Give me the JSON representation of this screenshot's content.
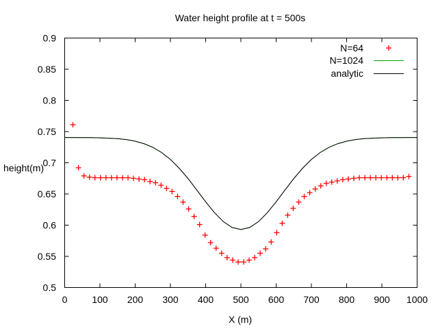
{
  "chart_data": {
    "type": "line",
    "title": "Water height profile at t = 500s",
    "xlabel": "X (m)",
    "ylabel": "height(m)",
    "xlim": [
      0,
      1000
    ],
    "ylim": [
      0.5,
      0.9
    ],
    "xticks": [
      "0",
      "100",
      "200",
      "300",
      "400",
      "500",
      "600",
      "700",
      "800",
      "900",
      "1000"
    ],
    "yticks": [
      "0.5",
      "0.55",
      "0.6",
      "0.65",
      "0.7",
      "0.75",
      "0.8",
      "0.85",
      "0.9"
    ],
    "grid": false,
    "legend_position": "top-right",
    "series": [
      {
        "name": "N=64",
        "style": "points",
        "marker": "plus",
        "color": "#ff0000",
        "x": [
          23.4,
          39.1,
          54.7,
          70.3,
          85.9,
          101.6,
          117.2,
          132.8,
          148.4,
          164.1,
          179.7,
          195.3,
          210.9,
          226.6,
          242.2,
          257.8,
          273.4,
          289.1,
          304.7,
          320.3,
          335.9,
          351.6,
          367.2,
          382.8,
          398.4,
          414.1,
          429.7,
          445.3,
          460.9,
          476.6,
          492.2,
          507.8,
          523.4,
          539.1,
          554.7,
          570.3,
          585.9,
          601.6,
          617.2,
          632.8,
          648.4,
          664.1,
          679.7,
          695.3,
          710.9,
          726.6,
          742.2,
          757.8,
          773.4,
          789.1,
          804.7,
          820.3,
          835.9,
          851.6,
          867.2,
          882.8,
          898.4,
          914.1,
          929.7,
          945.3,
          960.9,
          976.6
        ],
        "y": [
          0.761,
          0.692,
          0.679,
          0.677,
          0.676,
          0.676,
          0.676,
          0.676,
          0.676,
          0.676,
          0.676,
          0.675,
          0.674,
          0.673,
          0.67,
          0.668,
          0.664,
          0.659,
          0.654,
          0.646,
          0.637,
          0.626,
          0.614,
          0.601,
          0.584,
          0.572,
          0.563,
          0.555,
          0.548,
          0.544,
          0.541,
          0.541,
          0.544,
          0.548,
          0.555,
          0.562,
          0.573,
          0.588,
          0.603,
          0.616,
          0.627,
          0.637,
          0.646,
          0.652,
          0.658,
          0.663,
          0.667,
          0.669,
          0.671,
          0.673,
          0.674,
          0.675,
          0.676,
          0.676,
          0.676,
          0.676,
          0.676,
          0.676,
          0.676,
          0.676,
          0.676,
          0.678
        ]
      },
      {
        "name": "N=1024",
        "style": "line",
        "color": "#00a000",
        "x": [
          0,
          25,
          50,
          75,
          100,
          125,
          150,
          175,
          200,
          225,
          250,
          275,
          300,
          325,
          350,
          375,
          400,
          425,
          450,
          475,
          500,
          525,
          550,
          575,
          600,
          625,
          650,
          675,
          700,
          725,
          750,
          775,
          800,
          825,
          850,
          875,
          900,
          925,
          950,
          975,
          1000
        ],
        "y": [
          0.7405,
          0.7405,
          0.7404,
          0.7403,
          0.74,
          0.7395,
          0.7387,
          0.7372,
          0.7346,
          0.7307,
          0.7248,
          0.7165,
          0.7054,
          0.6912,
          0.6747,
          0.6563,
          0.6375,
          0.62,
          0.6057,
          0.5963,
          0.593,
          0.5963,
          0.6057,
          0.62,
          0.6375,
          0.6563,
          0.6747,
          0.6912,
          0.7054,
          0.7165,
          0.7248,
          0.7307,
          0.7346,
          0.7372,
          0.7387,
          0.7395,
          0.74,
          0.7403,
          0.7404,
          0.7405,
          0.7405
        ]
      },
      {
        "name": "analytic",
        "style": "line",
        "color": "#000000",
        "x": [
          0,
          25,
          50,
          75,
          100,
          125,
          150,
          175,
          200,
          225,
          250,
          275,
          300,
          325,
          350,
          375,
          400,
          425,
          450,
          475,
          500,
          525,
          550,
          575,
          600,
          625,
          650,
          675,
          700,
          725,
          750,
          775,
          800,
          825,
          850,
          875,
          900,
          925,
          950,
          975,
          1000
        ],
        "y": [
          0.7405,
          0.7405,
          0.7404,
          0.7403,
          0.74,
          0.7395,
          0.7387,
          0.7372,
          0.7346,
          0.7307,
          0.7248,
          0.7165,
          0.7054,
          0.6912,
          0.6747,
          0.6563,
          0.6375,
          0.62,
          0.6057,
          0.5963,
          0.593,
          0.5963,
          0.6057,
          0.62,
          0.6375,
          0.6563,
          0.6747,
          0.6912,
          0.7054,
          0.7165,
          0.7248,
          0.7307,
          0.7346,
          0.7372,
          0.7387,
          0.7395,
          0.74,
          0.7403,
          0.7404,
          0.7405,
          0.7405
        ]
      }
    ]
  }
}
